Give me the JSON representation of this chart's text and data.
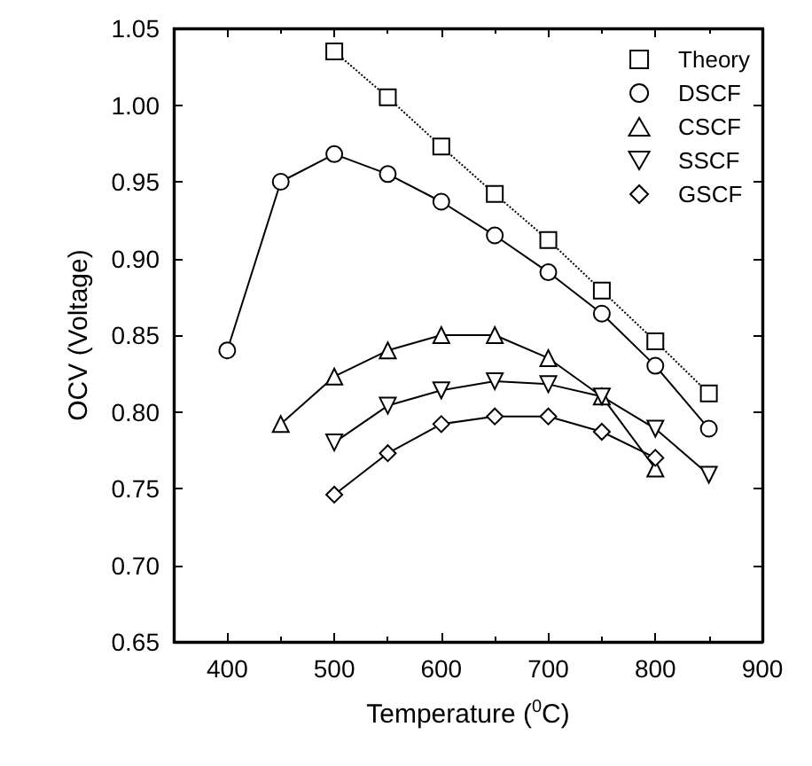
{
  "chart_data": {
    "type": "line",
    "xlabel": "Temperature ($^{0}$C)",
    "ylabel": "OCV (Voltage)",
    "xlim": [
      350,
      900
    ],
    "xticks": [
      400,
      500,
      600,
      700,
      800,
      900
    ],
    "ylim": [
      0.65,
      1.05
    ],
    "yticks": [
      0.65,
      {
        "value": 0.7,
        "label": "0.70"
      },
      0.75,
      {
        "value": 0.8,
        "label": "0.80"
      },
      0.85,
      {
        "value": 0.9,
        "label": "0.90"
      },
      0.95,
      {
        "value": 1,
        "label": "1.00"
      },
      1.05
    ],
    "grid": false,
    "legend": "top right",
    "series": [
      {
        "name": "Theory",
        "color": "#000000",
        "marker": "square",
        "line_style": "dotted",
        "x": [
          500,
          550,
          600,
          650,
          700,
          750,
          800,
          850
        ],
        "values": [
          1.035,
          1.005,
          0.973,
          0.942,
          0.912,
          0.879,
          0.846,
          0.812
        ]
      },
      {
        "name": "DSCF",
        "color": "#000000",
        "marker": "circle",
        "line_style": "solid",
        "x": [
          400,
          450,
          500,
          550,
          600,
          650,
          700,
          750,
          800,
          850
        ],
        "values": [
          0.84,
          0.95,
          0.968,
          0.955,
          0.937,
          0.915,
          0.891,
          0.864,
          0.83,
          0.789
        ]
      },
      {
        "name": "CSCF",
        "color": "#000000",
        "marker": "triangle",
        "line_style": "solid",
        "x": [
          450,
          500,
          550,
          600,
          650,
          700,
          750,
          800
        ],
        "values": [
          0.792,
          0.823,
          0.84,
          0.85,
          0.85,
          0.835,
          0.81,
          0.763
        ]
      },
      {
        "name": "SSCF",
        "color": "#000000",
        "marker": "triangle-down",
        "line_style": "solid",
        "x": [
          500,
          550,
          600,
          650,
          700,
          750,
          800,
          850
        ],
        "values": [
          0.78,
          0.804,
          0.814,
          0.82,
          0.818,
          0.81,
          0.789,
          0.759
        ]
      },
      {
        "name": "GSCF",
        "color": "#000000",
        "marker": "diamond",
        "line_style": "solid",
        "x": [
          500,
          550,
          600,
          650,
          700,
          750,
          800
        ],
        "values": [
          0.746,
          0.773,
          0.792,
          0.797,
          0.797,
          0.787,
          0.77
        ]
      }
    ]
  }
}
